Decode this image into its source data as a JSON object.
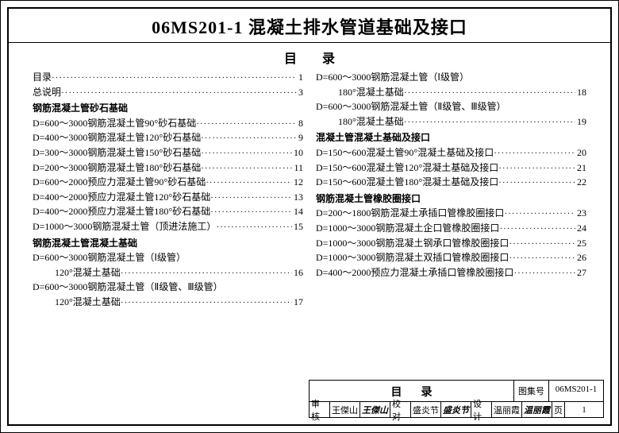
{
  "title": "06MS201-1 混凝土排水管道基础及接口",
  "toc_heading": "目录",
  "left": [
    {
      "type": "entry",
      "label": "目录",
      "page": "1"
    },
    {
      "type": "entry",
      "label": "总说明",
      "page": "3"
    },
    {
      "type": "section",
      "label": "钢筋混凝土管砂石基础"
    },
    {
      "type": "entry",
      "label": "D=600～3000钢筋混凝土管90°砂石基础",
      "page": "8"
    },
    {
      "type": "entry",
      "label": "D=400～3000钢筋混凝土管120°砂石基础",
      "page": "9"
    },
    {
      "type": "entry",
      "label": "D=300～3000钢筋混凝土管150°砂石基础",
      "page": "10"
    },
    {
      "type": "entry",
      "label": "D=200～3000钢筋混凝土管180°砂石基础",
      "page": "11"
    },
    {
      "type": "entry",
      "label": "D=600～2000预应力混凝土管90°砂石基础",
      "page": "12"
    },
    {
      "type": "entry",
      "label": "D=400～2000预应力混凝土管120°砂石基础",
      "page": "13"
    },
    {
      "type": "entry",
      "label": "D=400～2000预应力混凝土管180°砂石基础",
      "page": "14"
    },
    {
      "type": "entry",
      "label": "D=1000～3000钢筋混凝土管（顶进法施工）",
      "page": "15"
    },
    {
      "type": "section",
      "label": "钢筋混凝土管混凝土基础"
    },
    {
      "type": "plain",
      "label": "D=600～3000钢筋混凝土管（Ⅰ级管）"
    },
    {
      "type": "entry",
      "indent": true,
      "label": "120°混凝土基础",
      "page": "16"
    },
    {
      "type": "plain",
      "label": "D=600～3000钢筋混凝土管（Ⅱ级管、Ⅲ级管）"
    },
    {
      "type": "entry",
      "indent": true,
      "label": "120°混凝土基础",
      "page": "17"
    }
  ],
  "right": [
    {
      "type": "plain",
      "label": "D=600～3000钢筋混凝土管（Ⅰ级管）"
    },
    {
      "type": "entry",
      "indent": true,
      "label": "180°混凝土基础",
      "page": "18"
    },
    {
      "type": "plain",
      "label": "D=600～3000钢筋混凝土管（Ⅱ级管、Ⅲ级管）"
    },
    {
      "type": "entry",
      "indent": true,
      "label": "180°混凝土基础",
      "page": "19"
    },
    {
      "type": "section",
      "label": "混凝土管混凝土基础及接口"
    },
    {
      "type": "entry",
      "label": "D=150～600混凝土管90°混凝土基础及接口",
      "page": "20"
    },
    {
      "type": "entry",
      "label": "D=150～600混凝土管120°混凝土基础及接口",
      "page": "21"
    },
    {
      "type": "entry",
      "label": "D=150～600混凝土管180°混凝土基础及接口",
      "page": "22"
    },
    {
      "type": "section",
      "label": "钢筋混凝土管橡胶圈接口"
    },
    {
      "type": "entry",
      "label": "D=200～1800钢筋混凝土承插口管橡胶圈接口",
      "page": "23"
    },
    {
      "type": "entry",
      "label": "D=1000～3000钢筋混凝土企口管橡胶圈接口",
      "page": "24"
    },
    {
      "type": "entry",
      "label": "D=1000～3000钢筋混凝土钢承口管橡胶圈接口",
      "page": "25"
    },
    {
      "type": "entry",
      "label": "D=1000～3000钢筋混凝土双插口管橡胶圈接口",
      "page": "26"
    },
    {
      "type": "entry",
      "label": "D=400～2000预应力混凝土承插口管橡胶圈接口",
      "page": "27"
    }
  ],
  "footer": {
    "mulu": "目录",
    "set_label": "图集号",
    "set_value": "06MS201-1",
    "row": {
      "shenhe_lbl": "审核",
      "shenhe_val": "王傑山",
      "shenhe_sig": "王傑山",
      "jiaodui_lbl": "校对",
      "jiaodui_val": "盛炎节",
      "jiaodui_sig": "盛炎节",
      "sheji_lbl": "设计",
      "sheji_val": "温丽霞",
      "sheji_sig": "温丽霞",
      "page_lbl": "页",
      "page_val": "1"
    }
  }
}
